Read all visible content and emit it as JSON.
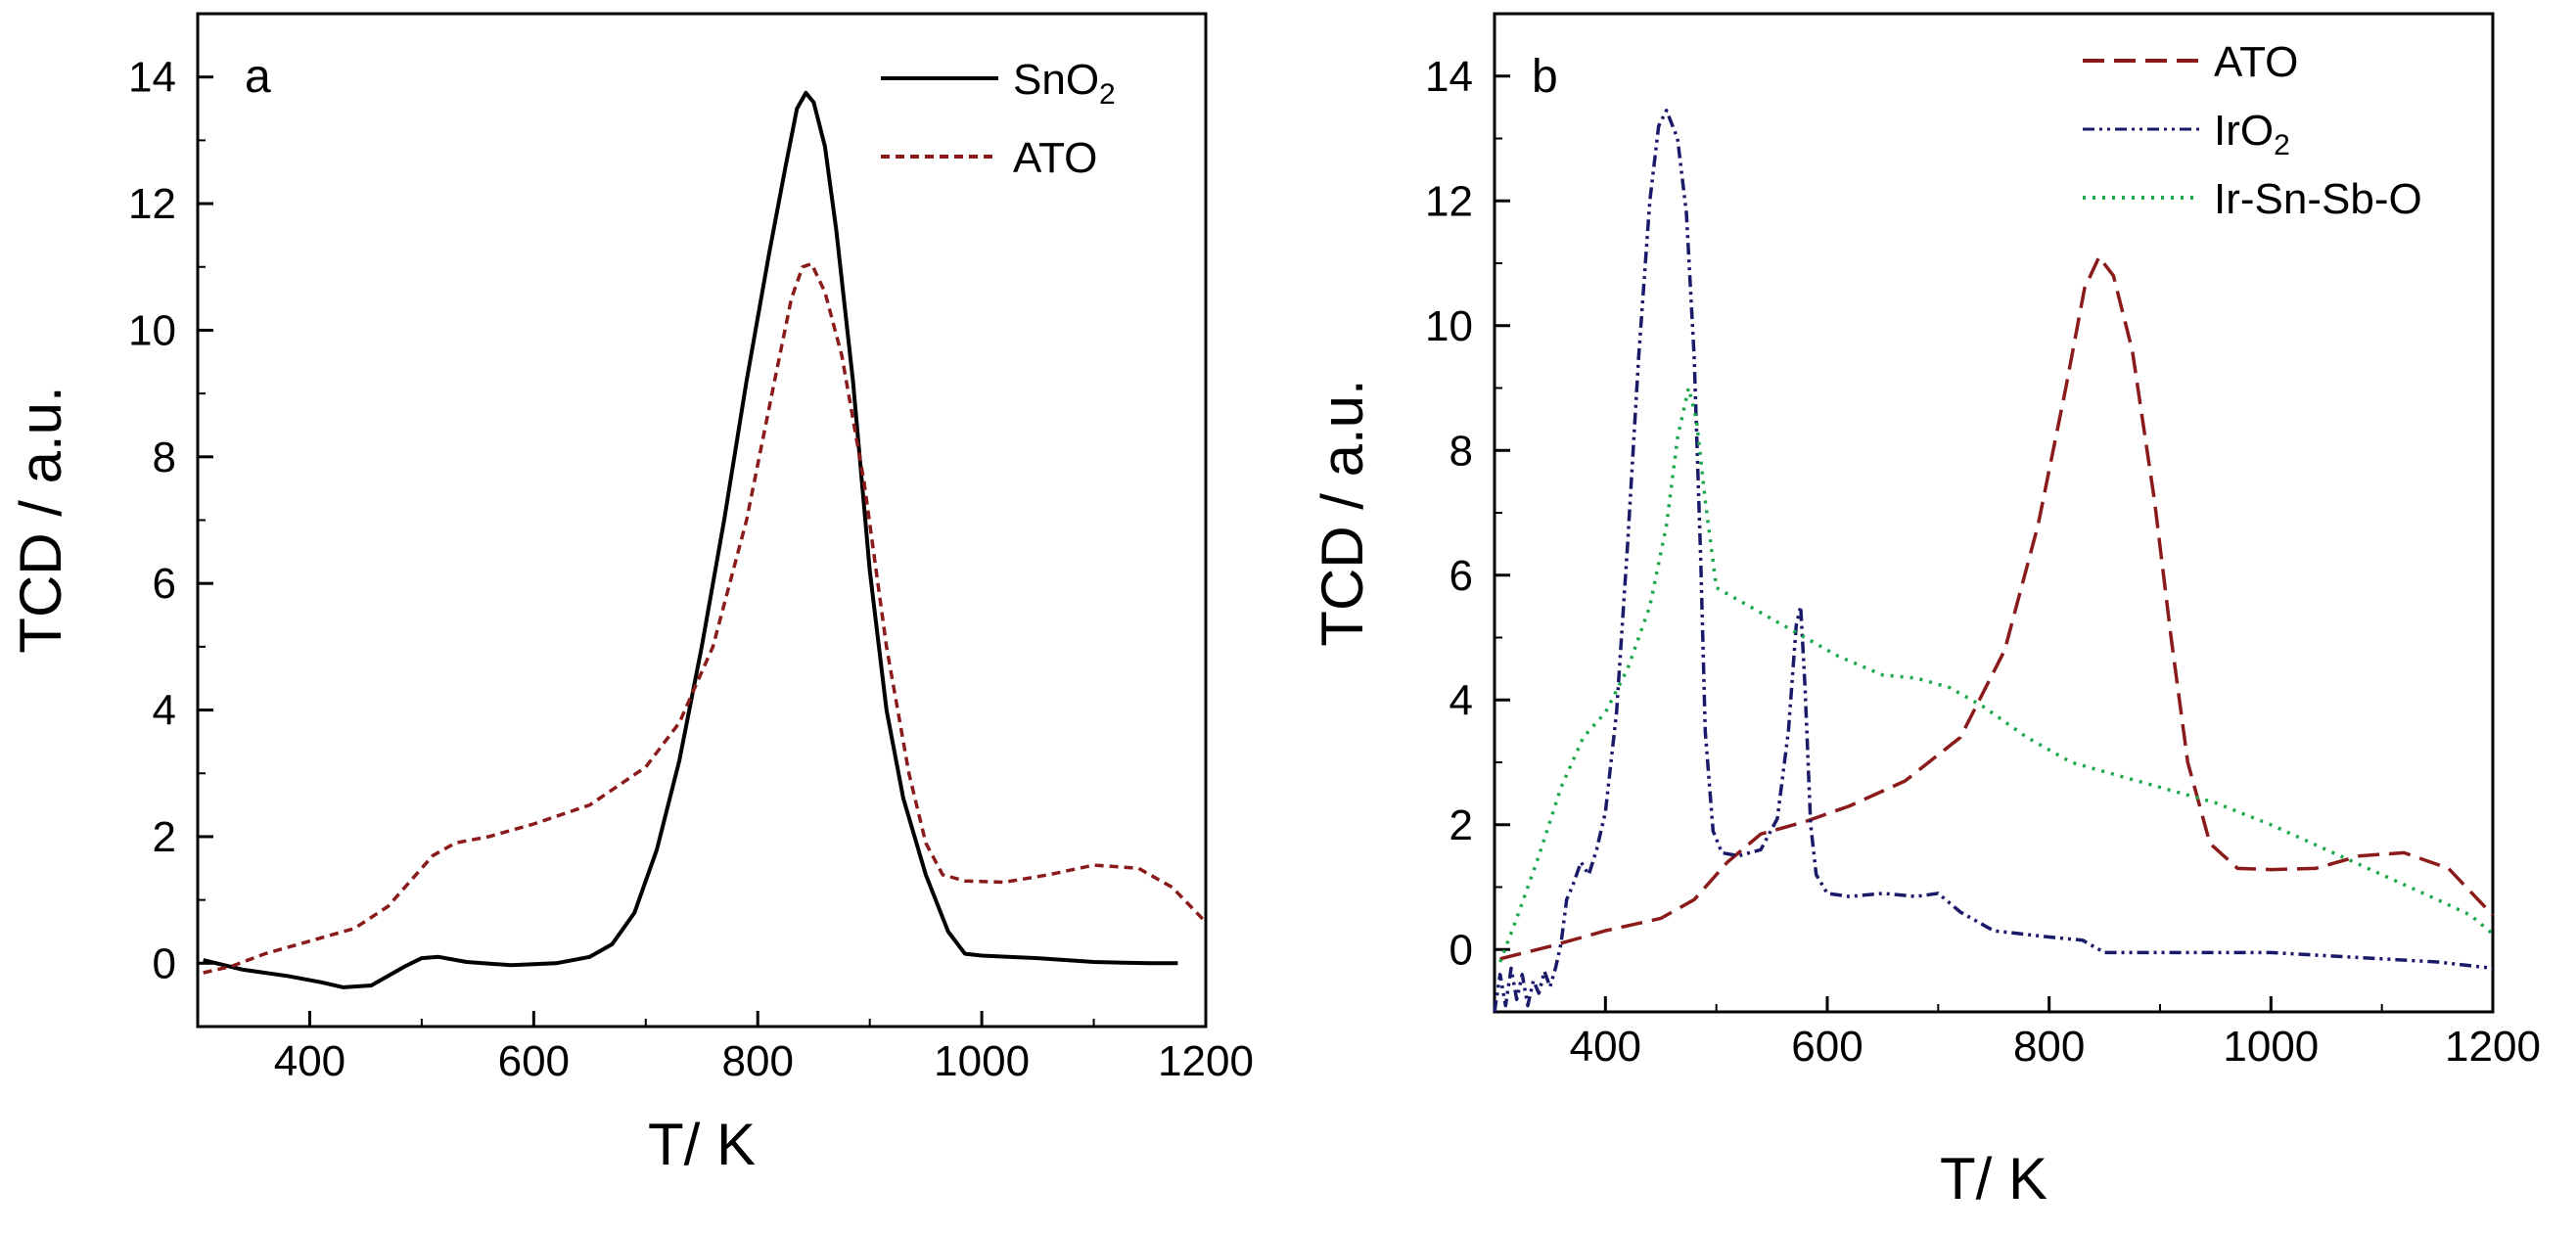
{
  "figure": {
    "panels": [
      "a",
      "b"
    ]
  },
  "chart_data": [
    {
      "type": "line",
      "panel_label": "a",
      "title": "",
      "xlabel": "T/ K",
      "ylabel": "TCD / a.u.",
      "xlim": [
        300,
        1200
      ],
      "ylim": [
        -1,
        15
      ],
      "xticks": [
        400,
        600,
        800,
        1000,
        1200
      ],
      "yticks": [
        0,
        2,
        4,
        6,
        8,
        10,
        12,
        14
      ],
      "xtick_labels": [
        "400",
        "600",
        "800",
        "1000",
        "1200"
      ],
      "ytick_labels": [
        "0",
        "2",
        "4",
        "6",
        "8",
        "10",
        "12",
        "14"
      ],
      "legend_position": "top-right",
      "series": [
        {
          "name": "SnO2",
          "legend_main": "SnO",
          "legend_sub": "2",
          "color": "#000000",
          "style": "solid",
          "points": [
            [
              305,
              0.05
            ],
            [
              340,
              -0.1
            ],
            [
              380,
              -0.2
            ],
            [
              410,
              -0.3
            ],
            [
              430,
              -0.38
            ],
            [
              455,
              -0.35
            ],
            [
              470,
              -0.2
            ],
            [
              485,
              -0.05
            ],
            [
              500,
              0.08
            ],
            [
              515,
              0.1
            ],
            [
              540,
              0.02
            ],
            [
              580,
              -0.03
            ],
            [
              620,
              0.0
            ],
            [
              650,
              0.1
            ],
            [
              670,
              0.3
            ],
            [
              690,
              0.8
            ],
            [
              710,
              1.8
            ],
            [
              730,
              3.2
            ],
            [
              750,
              5.0
            ],
            [
              770,
              7.0
            ],
            [
              790,
              9.2
            ],
            [
              810,
              11.2
            ],
            [
              825,
              12.6
            ],
            [
              835,
              13.5
            ],
            [
              843,
              13.75
            ],
            [
              850,
              13.6
            ],
            [
              860,
              12.9
            ],
            [
              870,
              11.6
            ],
            [
              885,
              9.2
            ],
            [
              900,
              6.2
            ],
            [
              915,
              4.0
            ],
            [
              930,
              2.6
            ],
            [
              950,
              1.4
            ],
            [
              970,
              0.5
            ],
            [
              985,
              0.15
            ],
            [
              1000,
              0.12
            ],
            [
              1050,
              0.08
            ],
            [
              1100,
              0.02
            ],
            [
              1150,
              0.0
            ],
            [
              1175,
              0.0
            ]
          ]
        },
        {
          "name": "ATO",
          "legend_main": "ATO",
          "legend_sub": "",
          "color": "#8b1a1a",
          "style": "short-dash",
          "points": [
            [
              305,
              -0.15
            ],
            [
              330,
              -0.05
            ],
            [
              360,
              0.15
            ],
            [
              400,
              0.35
            ],
            [
              440,
              0.55
            ],
            [
              470,
              0.9
            ],
            [
              490,
              1.3
            ],
            [
              510,
              1.7
            ],
            [
              530,
              1.9
            ],
            [
              560,
              2.0
            ],
            [
              600,
              2.2
            ],
            [
              650,
              2.5
            ],
            [
              700,
              3.1
            ],
            [
              730,
              3.8
            ],
            [
              760,
              5.0
            ],
            [
              790,
              7.0
            ],
            [
              815,
              9.2
            ],
            [
              830,
              10.5
            ],
            [
              840,
              11.0
            ],
            [
              848,
              11.05
            ],
            [
              860,
              10.6
            ],
            [
              875,
              9.6
            ],
            [
              895,
              7.6
            ],
            [
              915,
              5.0
            ],
            [
              935,
              3.0
            ],
            [
              950,
              1.9
            ],
            [
              965,
              1.4
            ],
            [
              985,
              1.3
            ],
            [
              1020,
              1.28
            ],
            [
              1060,
              1.4
            ],
            [
              1100,
              1.55
            ],
            [
              1140,
              1.5
            ],
            [
              1170,
              1.2
            ],
            [
              1200,
              0.65
            ]
          ]
        }
      ]
    },
    {
      "type": "line",
      "panel_label": "b",
      "title": "",
      "xlabel": "T/ K",
      "ylabel": "TCD / a.u.",
      "xlim": [
        300,
        1200
      ],
      "ylim": [
        -1,
        15
      ],
      "xticks": [
        400,
        600,
        800,
        1000,
        1200
      ],
      "yticks": [
        0,
        2,
        4,
        6,
        8,
        10,
        12,
        14
      ],
      "xtick_labels": [
        "400",
        "600",
        "800",
        "1000",
        "1200"
      ],
      "ytick_labels": [
        "0",
        "2",
        "4",
        "6",
        "8",
        "10",
        "12",
        "14"
      ],
      "legend_position": "top-right",
      "series": [
        {
          "name": "ATO",
          "legend_main": "ATO",
          "legend_sub": "",
          "color": "#8b1a1a",
          "style": "long-dash",
          "points": [
            [
              305,
              -0.15
            ],
            [
              350,
              0.05
            ],
            [
              400,
              0.3
            ],
            [
              450,
              0.5
            ],
            [
              480,
              0.8
            ],
            [
              510,
              1.4
            ],
            [
              540,
              1.85
            ],
            [
              580,
              2.05
            ],
            [
              620,
              2.3
            ],
            [
              670,
              2.7
            ],
            [
              720,
              3.4
            ],
            [
              760,
              4.8
            ],
            [
              790,
              6.8
            ],
            [
              815,
              9.0
            ],
            [
              832,
              10.6
            ],
            [
              845,
              11.1
            ],
            [
              858,
              10.8
            ],
            [
              875,
              9.6
            ],
            [
              895,
              7.2
            ],
            [
              910,
              5.0
            ],
            [
              925,
              3.0
            ],
            [
              945,
              1.7
            ],
            [
              970,
              1.3
            ],
            [
              1000,
              1.28
            ],
            [
              1040,
              1.3
            ],
            [
              1080,
              1.5
            ],
            [
              1120,
              1.55
            ],
            [
              1160,
              1.3
            ],
            [
              1200,
              0.55
            ]
          ]
        },
        {
          "name": "IrO2",
          "legend_main": "IrO",
          "legend_sub": "2",
          "color": "#1a1a6b",
          "style": "dash-dot-dot",
          "points": [
            [
              300,
              -1.0
            ],
            [
              305,
              -0.4
            ],
            [
              310,
              -0.9
            ],
            [
              315,
              -0.3
            ],
            [
              320,
              -0.8
            ],
            [
              325,
              -0.4
            ],
            [
              330,
              -0.9
            ],
            [
              335,
              -0.5
            ],
            [
              340,
              -0.7
            ],
            [
              345,
              -0.35
            ],
            [
              350,
              -0.6
            ],
            [
              355,
              -0.3
            ],
            [
              360,
              0.1
            ],
            [
              365,
              0.8
            ],
            [
              370,
              1.0
            ],
            [
              378,
              1.4
            ],
            [
              385,
              1.2
            ],
            [
              392,
              1.6
            ],
            [
              400,
              2.2
            ],
            [
              410,
              3.8
            ],
            [
              420,
              6.5
            ],
            [
              430,
              9.5
            ],
            [
              440,
              12.0
            ],
            [
              448,
              13.2
            ],
            [
              455,
              13.45
            ],
            [
              465,
              13.0
            ],
            [
              473,
              11.8
            ],
            [
              480,
              9.5
            ],
            [
              486,
              6.2
            ],
            [
              490,
              3.5
            ],
            [
              497,
              1.9
            ],
            [
              505,
              1.55
            ],
            [
              520,
              1.5
            ],
            [
              540,
              1.6
            ],
            [
              555,
              2.1
            ],
            [
              565,
              3.5
            ],
            [
              572,
              5.2
            ],
            [
              576,
              5.5
            ],
            [
              580,
              4.2
            ],
            [
              585,
              2.0
            ],
            [
              590,
              1.2
            ],
            [
              600,
              0.9
            ],
            [
              620,
              0.85
            ],
            [
              650,
              0.9
            ],
            [
              680,
              0.85
            ],
            [
              700,
              0.9
            ],
            [
              720,
              0.6
            ],
            [
              750,
              0.3
            ],
            [
              800,
              0.2
            ],
            [
              830,
              0.15
            ],
            [
              850,
              -0.05
            ],
            [
              900,
              -0.05
            ],
            [
              1000,
              -0.05
            ],
            [
              1050,
              -0.1
            ],
            [
              1100,
              -0.15
            ],
            [
              1150,
              -0.2
            ],
            [
              1200,
              -0.3
            ]
          ]
        },
        {
          "name": "Ir-Sn-Sb-O",
          "legend_main": "Ir-Sn-Sb-O",
          "legend_sub": "",
          "color": "#1aa84a",
          "style": "dotted",
          "points": [
            [
              305,
              -0.2
            ],
            [
              320,
              0.5
            ],
            [
              340,
              1.5
            ],
            [
              360,
              2.6
            ],
            [
              380,
              3.4
            ],
            [
              400,
              3.8
            ],
            [
              420,
              4.5
            ],
            [
              440,
              5.5
            ],
            [
              455,
              6.8
            ],
            [
              465,
              8.2
            ],
            [
              475,
              9.0
            ],
            [
              482,
              8.5
            ],
            [
              490,
              7.2
            ],
            [
              500,
              5.8
            ],
            [
              520,
              5.6
            ],
            [
              550,
              5.3
            ],
            [
              580,
              5.0
            ],
            [
              610,
              4.7
            ],
            [
              650,
              4.4
            ],
            [
              680,
              4.35
            ],
            [
              710,
              4.2
            ],
            [
              740,
              3.9
            ],
            [
              780,
              3.4
            ],
            [
              820,
              3.0
            ],
            [
              860,
              2.8
            ],
            [
              900,
              2.6
            ],
            [
              950,
              2.35
            ],
            [
              1000,
              2.0
            ],
            [
              1050,
              1.6
            ],
            [
              1100,
              1.2
            ],
            [
              1150,
              0.8
            ],
            [
              1180,
              0.55
            ],
            [
              1200,
              0.25
            ]
          ]
        }
      ]
    }
  ]
}
